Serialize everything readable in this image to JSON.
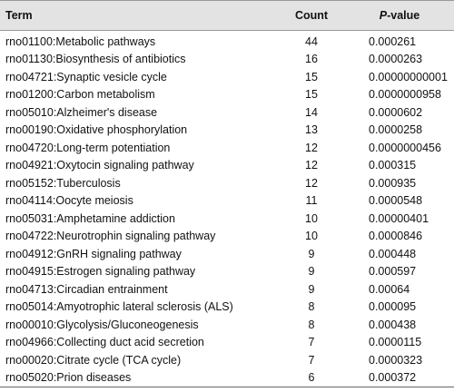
{
  "table": {
    "header": [
      "Term",
      "Count",
      "P-value"
    ],
    "rows": [
      [
        "rno01100:Metabolic pathways",
        44,
        "0.000261"
      ],
      [
        "rno01130:Biosynthesis of antibiotics",
        16,
        "0.0000263"
      ],
      [
        "rno04721:Synaptic vesicle cycle",
        15,
        "0.00000000001"
      ],
      [
        "rno01200:Carbon metabolism",
        15,
        "0.0000000958"
      ],
      [
        "rno05010:Alzheimer's disease",
        14,
        "0.0000602"
      ],
      [
        "rno00190:Oxidative phosphorylation",
        13,
        "0.0000258"
      ],
      [
        "rno04720:Long-term potentiation",
        12,
        "0.0000000456"
      ],
      [
        "rno04921:Oxytocin signaling pathway",
        12,
        "0.000315"
      ],
      [
        "rno05152:Tuberculosis",
        12,
        "0.000935"
      ],
      [
        "rno04114:Oocyte meiosis",
        11,
        "0.0000548"
      ],
      [
        "rno05031:Amphetamine addiction",
        10,
        "0.00000401"
      ],
      [
        "rno04722:Neurotrophin signaling pathway",
        10,
        "0.0000846"
      ],
      [
        "rno04912:GnRH signaling pathway",
        9,
        "0.000448"
      ],
      [
        "rno04915:Estrogen signaling pathway",
        9,
        "0.000597"
      ],
      [
        "rno04713:Circadian entrainment",
        9,
        "0.00064"
      ],
      [
        "rno05014:Amyotrophic lateral sclerosis (ALS)",
        8,
        "0.000095"
      ],
      [
        "rno00010:Glycolysis/Gluconeogenesis",
        8,
        "0.000438"
      ],
      [
        "rno04966:Collecting duct acid secretion",
        7,
        "0.0000115"
      ],
      [
        "rno00020:Citrate cycle (TCA cycle)",
        7,
        "0.0000323"
      ],
      [
        "rno05020:Prion diseases",
        6,
        "0.000372"
      ]
    ]
  }
}
